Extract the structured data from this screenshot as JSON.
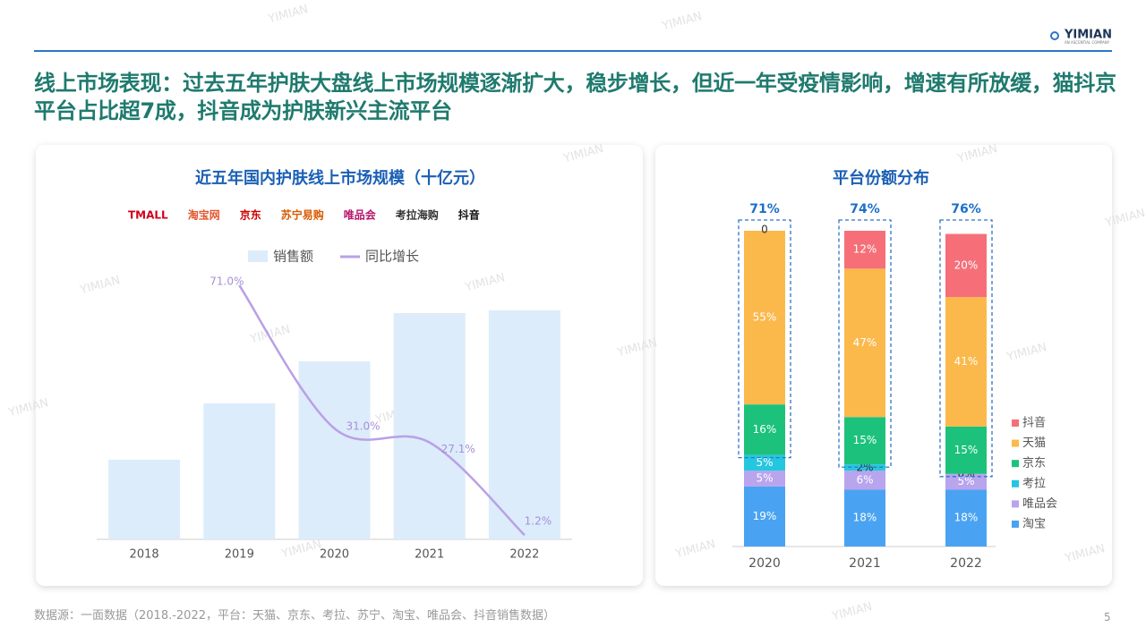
{
  "header": {
    "title": "线上市场表现：过去五年护肤大盘线上市场规模逐渐扩大，稳步增长，但近一年受疫情影响，增速有所放缓，猫抖京平台占比超7成，抖音成为护肤新兴主流平台",
    "logo": "YIMIAN",
    "logo_sub": "AN ASCENTIAL COMPANY"
  },
  "watermark": "YIMIAN",
  "chart_data": [
    {
      "type": "bar-line",
      "title": "近五年国内护肤线上市场规模（十亿元）",
      "logos": [
        "TMALL",
        "淘宝网",
        "京东",
        "苏宁易购",
        "唯品会",
        "考拉海购",
        "抖音"
      ],
      "categories": [
        "2018",
        "2019",
        "2020",
        "2021",
        "2022"
      ],
      "ylim": [
        0,
        300
      ],
      "y2lim": [
        0,
        75
      ],
      "legend": "top",
      "series": [
        {
          "name": "销售额",
          "type": "bar",
          "color": "#dcecfb",
          "values": [
            89,
            152,
            199,
            253,
            256
          ]
        },
        {
          "name": "同比增长",
          "type": "line",
          "axis": "y2",
          "color": "#b9a0e6",
          "values": [
            null,
            71.0,
            31.0,
            27.1,
            1.2
          ],
          "value_labels": [
            null,
            "71.0%",
            "31.0%",
            "27.1%",
            "1.2%"
          ]
        }
      ]
    },
    {
      "type": "stacked-bar",
      "title": "平台份额分布",
      "categories": [
        "2020",
        "2021",
        "2022"
      ],
      "ylim": [
        0,
        100
      ],
      "legend": "right",
      "series": [
        {
          "name": "淘宝",
          "color": "#4aa3f2",
          "values": [
            19,
            18,
            18
          ],
          "value_labels": [
            "19%",
            "18%",
            "18%"
          ]
        },
        {
          "name": "唯品会",
          "color": "#b9a4ee",
          "values": [
            5,
            6,
            5
          ],
          "value_labels": [
            "5%",
            "6%",
            "5%"
          ]
        },
        {
          "name": "考拉",
          "color": "#25c6df",
          "values": [
            5,
            2,
            0
          ],
          "value_labels": [
            "5%",
            "2%",
            "0%"
          ]
        },
        {
          "name": "京东",
          "color": "#1cc27c",
          "values": [
            16,
            15,
            15
          ],
          "value_labels": [
            "16%",
            "15%",
            "15%"
          ]
        },
        {
          "name": "天猫",
          "color": "#fbb94c",
          "values": [
            55,
            47,
            41
          ],
          "value_labels": [
            "55%",
            "47%",
            "41%"
          ]
        },
        {
          "name": "抖音",
          "color": "#f66f78",
          "values": [
            0,
            12,
            20
          ],
          "value_labels": [
            "0",
            "12%",
            "20%"
          ]
        }
      ],
      "group_totals": {
        "values": [
          71,
          74,
          76
        ],
        "value_labels": [
          "71%",
          "74%",
          "76%"
        ]
      }
    }
  ],
  "footer": {
    "source": "数据源：一面数据（2018.-2022，平台：天猫、京东、考拉、苏宁、淘宝、唯品会、抖音销售数据）",
    "page": "5"
  }
}
